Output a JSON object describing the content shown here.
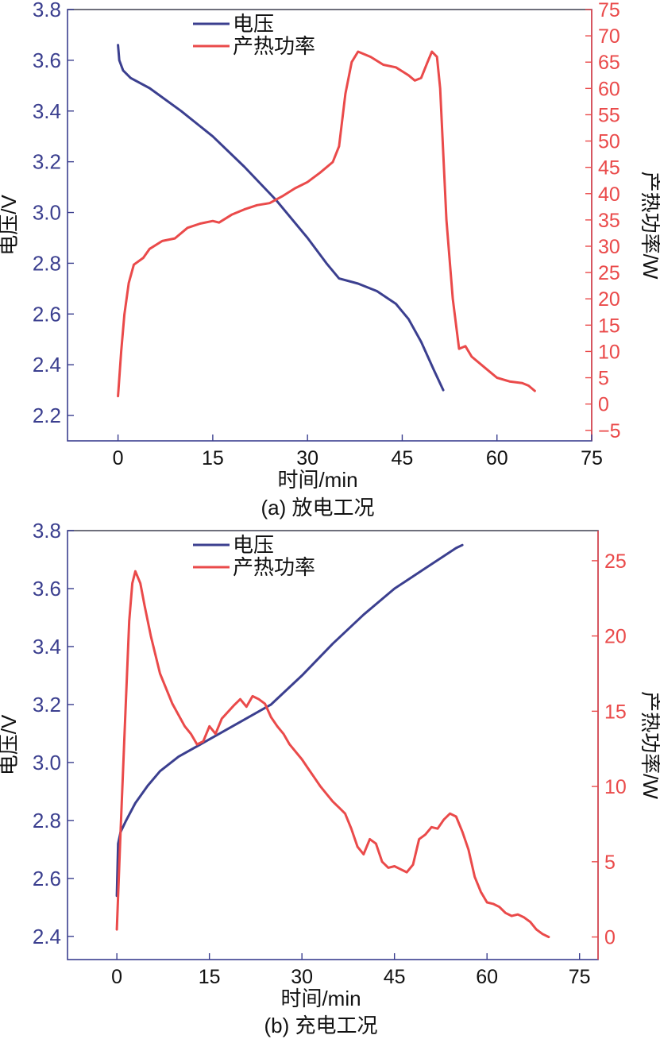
{
  "colors": {
    "voltage": "#3b3f8f",
    "heat": "#ea4a4a",
    "left_axis_text": "#3b3f8f",
    "right_axis_text": "#ea4a4a",
    "frame": "#3b3f8f",
    "text": "#111111"
  },
  "chart_data": [
    {
      "type": "line",
      "caption": "(a) 放电工况",
      "xlabel": "时间/min",
      "ylabel": "电压/V",
      "y2label": "产热功率/W",
      "xlim": [
        -8,
        75
      ],
      "ylim": [
        2.1,
        3.8
      ],
      "y2lim": [
        -7,
        75
      ],
      "xticks": [
        0,
        15,
        30,
        45,
        60,
        75
      ],
      "xtick_labels": [
        "0",
        "15",
        "30",
        "45",
        "60",
        "75"
      ],
      "yticks": [
        2.2,
        2.4,
        2.6,
        2.8,
        3.0,
        3.2,
        3.4,
        3.6,
        3.8
      ],
      "ytick_labels": [
        "2.2",
        "2.4",
        "2.6",
        "2.8",
        "3.0",
        "3.2",
        "3.4",
        "3.6",
        "3.8"
      ],
      "y2ticks": [
        -5,
        0,
        5,
        10,
        15,
        20,
        25,
        30,
        35,
        40,
        45,
        50,
        55,
        60,
        65,
        70,
        75
      ],
      "y2tick_labels": [
        "−5",
        "0",
        "5",
        "10",
        "15",
        "20",
        "25",
        "30",
        "35",
        "40",
        "45",
        "50",
        "55",
        "60",
        "65",
        "70",
        "75"
      ],
      "grid": false,
      "legend_position": "top-center",
      "series": [
        {
          "name": "电压",
          "axis": "left",
          "color": "#3b3f8f",
          "points": [
            [
              0,
              3.66
            ],
            [
              0.2,
              3.6
            ],
            [
              0.8,
              3.56
            ],
            [
              2,
              3.53
            ],
            [
              5,
              3.49
            ],
            [
              10,
              3.4
            ],
            [
              15,
              3.3
            ],
            [
              20,
              3.18
            ],
            [
              25,
              3.05
            ],
            [
              30,
              2.9
            ],
            [
              33,
              2.8
            ],
            [
              35,
              2.74
            ],
            [
              38,
              2.72
            ],
            [
              41,
              2.69
            ],
            [
              44,
              2.64
            ],
            [
              46,
              2.58
            ],
            [
              48,
              2.49
            ],
            [
              50,
              2.38
            ],
            [
              51.5,
              2.3
            ]
          ]
        },
        {
          "name": "产热功率",
          "axis": "right",
          "color": "#ea4a4a",
          "points": [
            [
              0,
              1.5
            ],
            [
              0.5,
              10
            ],
            [
              1,
              17
            ],
            [
              1.7,
              23
            ],
            [
              2.5,
              26.5
            ],
            [
              4,
              27.8
            ],
            [
              5,
              29.5
            ],
            [
              7,
              31
            ],
            [
              9,
              31.5
            ],
            [
              11,
              33.5
            ],
            [
              13,
              34.3
            ],
            [
              15,
              34.8
            ],
            [
              16,
              34.5
            ],
            [
              18,
              36
            ],
            [
              20,
              37
            ],
            [
              22,
              37.8
            ],
            [
              24,
              38.2
            ],
            [
              26,
              39.5
            ],
            [
              28,
              41
            ],
            [
              30,
              42.2
            ],
            [
              32,
              44
            ],
            [
              34,
              46
            ],
            [
              35,
              49
            ],
            [
              36,
              59
            ],
            [
              37,
              65
            ],
            [
              38,
              67
            ],
            [
              40,
              66
            ],
            [
              42,
              64.5
            ],
            [
              44,
              64
            ],
            [
              46,
              62.5
            ],
            [
              47,
              61.5
            ],
            [
              48,
              62
            ],
            [
              49,
              65
            ],
            [
              49.7,
              67
            ],
            [
              50.5,
              66
            ],
            [
              51,
              60
            ],
            [
              52,
              35
            ],
            [
              53,
              20
            ],
            [
              54,
              10.5
            ],
            [
              55,
              11
            ],
            [
              56,
              9
            ],
            [
              58,
              7
            ],
            [
              60,
              5
            ],
            [
              62,
              4.3
            ],
            [
              64,
              4
            ],
            [
              65,
              3.5
            ],
            [
              66,
              2.5
            ]
          ]
        }
      ]
    },
    {
      "type": "line",
      "caption": "(b) 充电工况",
      "xlabel": "时间/min",
      "ylabel": "电压/V",
      "y2label": "产热功率/W",
      "xlim": [
        -8,
        78
      ],
      "ylim": [
        2.32,
        3.8
      ],
      "y2lim": [
        -1.5,
        27
      ],
      "xticks": [
        0,
        15,
        30,
        45,
        60,
        75
      ],
      "xtick_labels": [
        "0",
        "15",
        "30",
        "45",
        "60",
        "75"
      ],
      "yticks": [
        2.4,
        2.6,
        2.8,
        3.0,
        3.2,
        3.4,
        3.6,
        3.8
      ],
      "ytick_labels": [
        "2.4",
        "2.6",
        "2.8",
        "3.0",
        "3.2",
        "3.4",
        "3.6",
        "3.8"
      ],
      "y2ticks": [
        0,
        5,
        10,
        15,
        20,
        25
      ],
      "y2tick_labels": [
        "0",
        "5",
        "10",
        "15",
        "20",
        "25"
      ],
      "grid": false,
      "legend_position": "top-center",
      "series": [
        {
          "name": "电压",
          "axis": "left",
          "color": "#3b3f8f",
          "points": [
            [
              0,
              2.54
            ],
            [
              0.2,
              2.72
            ],
            [
              0.6,
              2.76
            ],
            [
              1.5,
              2.8
            ],
            [
              3,
              2.86
            ],
            [
              5,
              2.92
            ],
            [
              7,
              2.97
            ],
            [
              10,
              3.02
            ],
            [
              15,
              3.08
            ],
            [
              20,
              3.14
            ],
            [
              25,
              3.2
            ],
            [
              30,
              3.3
            ],
            [
              35,
              3.41
            ],
            [
              40,
              3.51
            ],
            [
              45,
              3.6
            ],
            [
              50,
              3.67
            ],
            [
              55,
              3.74
            ],
            [
              56,
              3.75
            ]
          ]
        },
        {
          "name": "产热功率",
          "axis": "right",
          "color": "#ea4a4a",
          "points": [
            [
              0,
              0.5
            ],
            [
              0.6,
              7
            ],
            [
              1.3,
              14
            ],
            [
              2,
              21
            ],
            [
              2.5,
              23.5
            ],
            [
              3,
              24.3
            ],
            [
              3.8,
              23.5
            ],
            [
              4.5,
              22
            ],
            [
              5.5,
              20
            ],
            [
              7,
              17.5
            ],
            [
              9,
              15.5
            ],
            [
              11,
              14
            ],
            [
              12,
              13.5
            ],
            [
              13,
              12.8
            ],
            [
              14,
              13
            ],
            [
              15,
              14
            ],
            [
              16,
              13.5
            ],
            [
              17,
              14.5
            ],
            [
              19,
              15.4
            ],
            [
              20,
              15.8
            ],
            [
              21,
              15.3
            ],
            [
              22,
              16
            ],
            [
              23,
              15.8
            ],
            [
              24,
              15.5
            ],
            [
              25,
              14.6
            ],
            [
              26,
              14
            ],
            [
              27,
              13.5
            ],
            [
              28,
              12.8
            ],
            [
              30,
              11.8
            ],
            [
              31,
              11.2
            ],
            [
              32,
              10.6
            ],
            [
              33,
              10
            ],
            [
              34,
              9.5
            ],
            [
              35,
              9
            ],
            [
              36,
              8.6
            ],
            [
              37,
              8.2
            ],
            [
              38,
              7.2
            ],
            [
              39,
              6
            ],
            [
              40,
              5.5
            ],
            [
              41,
              6.5
            ],
            [
              42,
              6.2
            ],
            [
              43,
              5
            ],
            [
              44,
              4.6
            ],
            [
              45,
              4.7
            ],
            [
              46,
              4.5
            ],
            [
              47,
              4.3
            ],
            [
              48,
              4.8
            ],
            [
              49,
              6.5
            ],
            [
              50,
              6.8
            ],
            [
              51,
              7.3
            ],
            [
              52,
              7.2
            ],
            [
              53,
              7.8
            ],
            [
              54,
              8.2
            ],
            [
              55,
              8
            ],
            [
              56,
              7
            ],
            [
              57,
              5.8
            ],
            [
              58,
              4
            ],
            [
              59,
              3
            ],
            [
              60,
              2.3
            ],
            [
              61,
              2.2
            ],
            [
              62,
              2
            ],
            [
              63,
              1.6
            ],
            [
              64,
              1.4
            ],
            [
              65,
              1.5
            ],
            [
              66,
              1.3
            ],
            [
              67,
              1
            ],
            [
              68,
              0.5
            ],
            [
              69,
              0.2
            ],
            [
              70,
              0
            ]
          ]
        }
      ]
    }
  ]
}
